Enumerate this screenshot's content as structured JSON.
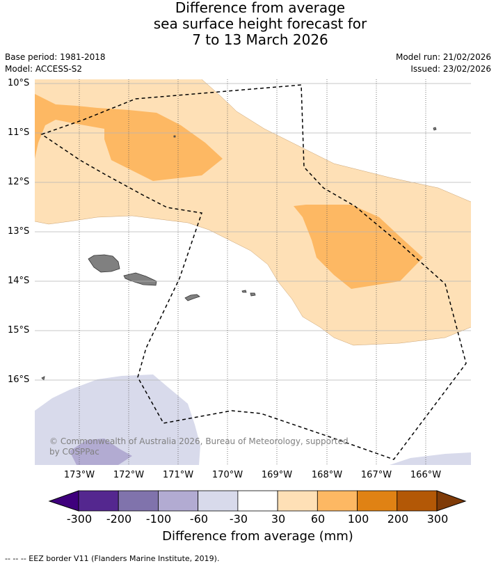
{
  "title": {
    "line1": "Difference from average",
    "line2": "sea surface height forecast for",
    "line3": "7 to 13 March 2026"
  },
  "meta": {
    "base_period": "Base period: 1981-2018",
    "model": "Model: ACCESS-S2",
    "model_run": "Model run: 21/02/2026",
    "issued": "Issued: 23/02/2026"
  },
  "axes": {
    "lat_labels": [
      "10°S",
      "11°S",
      "12°S",
      "13°S",
      "14°S",
      "15°S",
      "16°S"
    ],
    "lon_labels": [
      "173°W",
      "172°W",
      "171°W",
      "170°W",
      "169°W",
      "168°W",
      "167°W",
      "166°W"
    ]
  },
  "colorbar": {
    "title": "Difference from average (mm)",
    "labels": [
      "-300",
      "-200",
      "-100",
      "-60",
      "-30",
      "30",
      "60",
      "100",
      "200",
      "300"
    ],
    "colors": [
      "#3f007d",
      "#54278f",
      "#8073ac",
      "#b2abd2",
      "#d8daeb",
      "#ffffff",
      "#fee0b6",
      "#fdb863",
      "#e08214",
      "#b35806",
      "#7f3b08"
    ]
  },
  "copyright": "© Commonwealth of Australia 2026, Bureau of Meteorology, supported by COSPPac",
  "legend_note": "-- -- -- EEZ border V11 (Flanders Marine Institute, 2019).",
  "map_colors": {
    "pos_30_60": "#fee0b6",
    "pos_60_100": "#fdb863",
    "neg_30_60": "#d8daeb",
    "neg_60_100": "#b2abd2",
    "land": "#808080"
  }
}
